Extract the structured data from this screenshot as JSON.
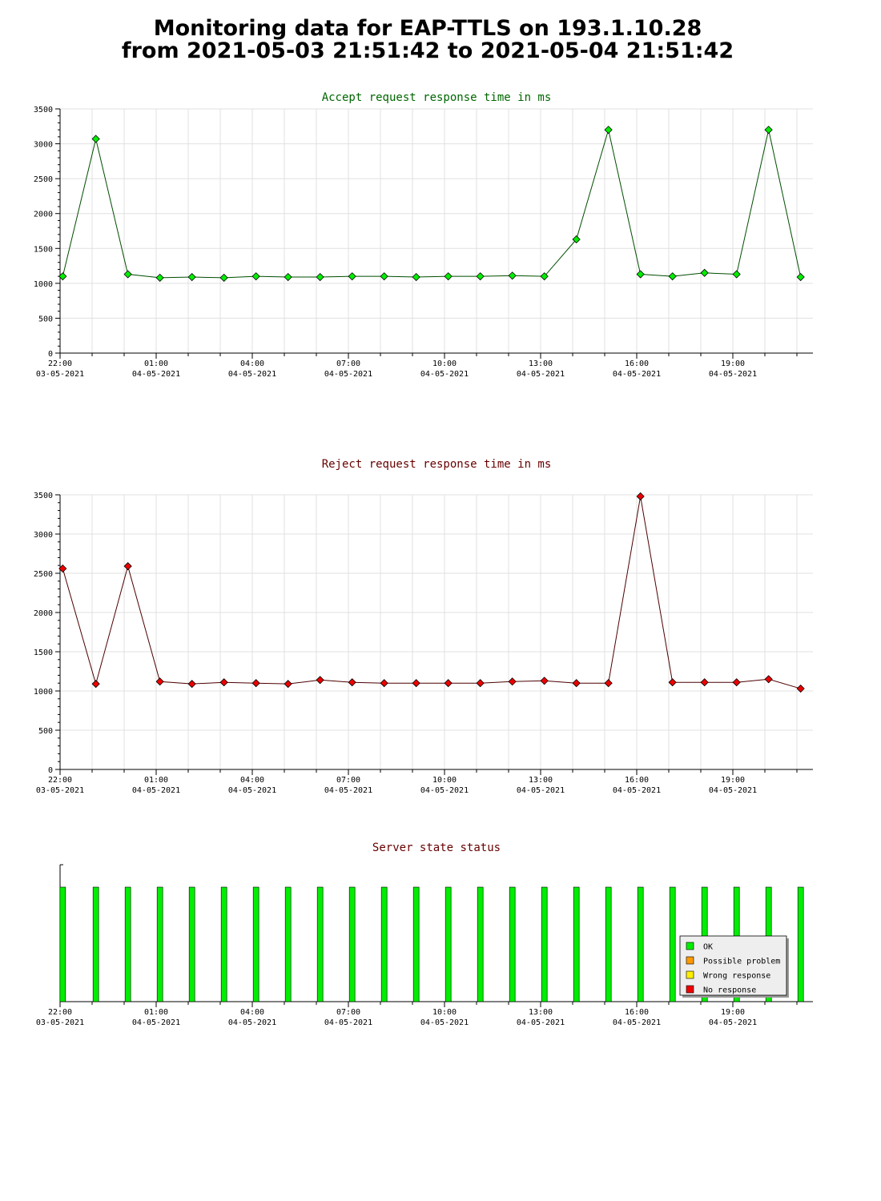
{
  "page": {
    "title_line1": "Monitoring data for EAP-TTLS on 193.1.10.28",
    "title_line2": "from 2021-05-03 21:51:42 to 2021-05-04 21:51:42"
  },
  "colors": {
    "accept_title": "#006600",
    "accept_line": "#004d00",
    "accept_marker": "#00ee00",
    "reject_title": "#660000",
    "reject_line": "#4d0000",
    "reject_marker": "#ee0000",
    "status_ok": "#00ee00",
    "possible_problem": "#ff9900",
    "wrong_response": "#ffee00",
    "no_response": "#ee0000"
  },
  "x_tick_labels": [
    {
      "time": "22:00",
      "date": "03-05-2021"
    },
    {
      "time": "01:00",
      "date": "04-05-2021"
    },
    {
      "time": "04:00",
      "date": "04-05-2021"
    },
    {
      "time": "07:00",
      "date": "04-05-2021"
    },
    {
      "time": "10:00",
      "date": "04-05-2021"
    },
    {
      "time": "13:00",
      "date": "04-05-2021"
    },
    {
      "time": "16:00",
      "date": "04-05-2021"
    },
    {
      "time": "19:00",
      "date": "04-05-2021"
    }
  ],
  "chart_data": [
    {
      "type": "line",
      "title": "Accept request response time in ms",
      "ylim": [
        0,
        3500
      ],
      "yticks": [
        0,
        500,
        1000,
        1500,
        2000,
        2500,
        3000,
        3500
      ],
      "xlim": [
        "2021-05-03 22:00",
        "2021-05-04 21:30"
      ],
      "grid": true,
      "x": [
        "2021-05-03 22:05",
        "2021-05-03 23:07",
        "2021-05-04 00:07",
        "2021-05-04 01:07",
        "2021-05-04 02:07",
        "2021-05-04 03:07",
        "2021-05-04 04:07",
        "2021-05-04 05:07",
        "2021-05-04 06:07",
        "2021-05-04 07:07",
        "2021-05-04 08:07",
        "2021-05-04 09:07",
        "2021-05-04 10:07",
        "2021-05-04 11:07",
        "2021-05-04 12:07",
        "2021-05-04 13:07",
        "2021-05-04 14:07",
        "2021-05-04 15:07",
        "2021-05-04 16:07",
        "2021-05-04 17:07",
        "2021-05-04 18:07",
        "2021-05-04 19:07",
        "2021-05-04 20:07",
        "2021-05-04 21:07"
      ],
      "values": [
        1100,
        3070,
        1130,
        1080,
        1090,
        1080,
        1100,
        1090,
        1090,
        1100,
        1100,
        1090,
        1100,
        1100,
        1110,
        1100,
        1630,
        3200,
        1130,
        1100,
        1150,
        1130,
        3200,
        1090
      ]
    },
    {
      "type": "line",
      "title": "Reject request response time in ms",
      "ylim": [
        0,
        3500
      ],
      "yticks": [
        0,
        500,
        1000,
        1500,
        2000,
        2500,
        3000,
        3500
      ],
      "xlim": [
        "2021-05-03 22:00",
        "2021-05-04 21:30"
      ],
      "grid": true,
      "x": [
        "2021-05-03 22:05",
        "2021-05-03 23:07",
        "2021-05-04 00:07",
        "2021-05-04 01:07",
        "2021-05-04 02:07",
        "2021-05-04 03:07",
        "2021-05-04 04:07",
        "2021-05-04 05:07",
        "2021-05-04 06:07",
        "2021-05-04 07:07",
        "2021-05-04 08:07",
        "2021-05-04 09:07",
        "2021-05-04 10:07",
        "2021-05-04 11:07",
        "2021-05-04 12:07",
        "2021-05-04 13:07",
        "2021-05-04 14:07",
        "2021-05-04 15:07",
        "2021-05-04 16:07",
        "2021-05-04 17:07",
        "2021-05-04 18:07",
        "2021-05-04 19:07",
        "2021-05-04 20:07",
        "2021-05-04 21:07"
      ],
      "values": [
        2560,
        1090,
        2590,
        1120,
        1090,
        1110,
        1100,
        1090,
        1140,
        1110,
        1100,
        1100,
        1100,
        1100,
        1120,
        1130,
        1100,
        1100,
        3480,
        1110,
        1110,
        1110,
        1150,
        1030
      ]
    },
    {
      "type": "bar",
      "title": "Server state status",
      "xlim": [
        "2021-05-03 22:00",
        "2021-05-04 21:30"
      ],
      "grid": false,
      "legend_placement": "bottom-right",
      "legend": [
        "OK",
        "Possible problem",
        "Wrong response",
        "No response"
      ],
      "x": [
        "2021-05-03 22:05",
        "2021-05-03 23:07",
        "2021-05-04 00:07",
        "2021-05-04 01:07",
        "2021-05-04 02:07",
        "2021-05-04 03:07",
        "2021-05-04 04:07",
        "2021-05-04 05:07",
        "2021-05-04 06:07",
        "2021-05-04 07:07",
        "2021-05-04 08:07",
        "2021-05-04 09:07",
        "2021-05-04 10:07",
        "2021-05-04 11:07",
        "2021-05-04 12:07",
        "2021-05-04 13:07",
        "2021-05-04 14:07",
        "2021-05-04 15:07",
        "2021-05-04 16:07",
        "2021-05-04 17:07",
        "2021-05-04 18:07",
        "2021-05-04 19:07",
        "2021-05-04 20:07",
        "2021-05-04 21:07"
      ],
      "states": [
        "OK",
        "OK",
        "OK",
        "OK",
        "OK",
        "OK",
        "OK",
        "OK",
        "OK",
        "OK",
        "OK",
        "OK",
        "OK",
        "OK",
        "OK",
        "OK",
        "OK",
        "OK",
        "OK",
        "OK",
        "OK",
        "OK",
        "OK",
        "OK"
      ]
    }
  ]
}
